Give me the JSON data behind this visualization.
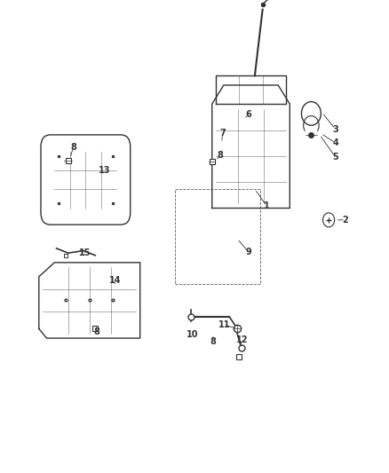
{
  "background_color": "#ffffff",
  "line_color": "#333333",
  "label_color": "#333333",
  "fig_width": 4.38,
  "fig_height": 5.33,
  "dpi": 100
}
